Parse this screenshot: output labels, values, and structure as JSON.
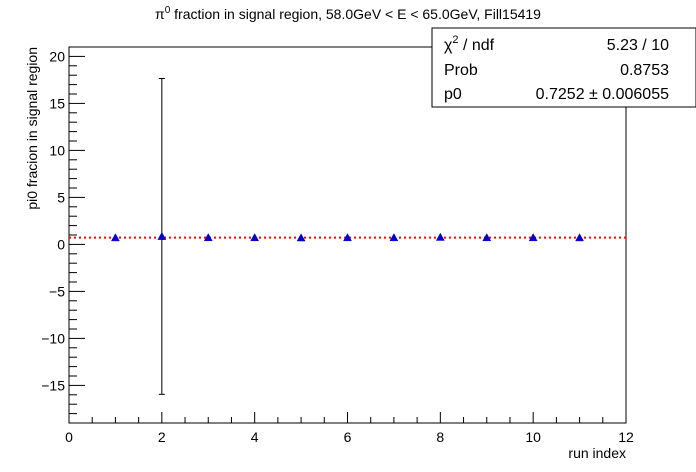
{
  "chart_data": {
    "type": "scatter",
    "title": "π⁰ fraction in signal region, 58.0GeV < E < 65.0GeV, Fill15419",
    "title_parts": {
      "pi": "π",
      "sup": "0",
      "rest": " fraction in signal region, 58.0GeV < E < 65.0GeV, Fill15419"
    },
    "xlabel": "run index",
    "ylabel": "pi0 fracion in signal region",
    "xlim": [
      0,
      12
    ],
    "ylim": [
      -19,
      21
    ],
    "x_ticks": [
      0,
      2,
      4,
      6,
      8,
      10,
      12
    ],
    "y_ticks": [
      -15,
      -10,
      -5,
      0,
      5,
      10,
      15,
      20
    ],
    "x_tick_labels": [
      "0",
      "2",
      "4",
      "6",
      "8",
      "10",
      "12"
    ],
    "y_tick_labels": [
      "−15",
      "−10",
      "−5",
      "0",
      "5",
      "10",
      "15",
      "20"
    ],
    "grid": false,
    "series": [
      {
        "marker": "triangle",
        "color": "#0000cc",
        "x": [
          1,
          2,
          3,
          4,
          5,
          6,
          7,
          8,
          9,
          10,
          11
        ],
        "y": [
          0.71,
          0.85,
          0.72,
          0.72,
          0.7,
          0.72,
          0.72,
          0.76,
          0.72,
          0.72,
          0.71
        ],
        "yerr": [
          0.0,
          16.8,
          0.0,
          0.0,
          0.0,
          0.0,
          0.0,
          0.0,
          0.0,
          0.0,
          0.0
        ]
      }
    ],
    "fit": {
      "value": 0.7252,
      "color": "#ff0000",
      "style": "dotted"
    },
    "stats_box": {
      "rows": [
        {
          "label": "χ² / ndf",
          "label_base": "χ",
          "label_sup": "2",
          "label_rest": " / ndf",
          "value": "5.23 / 10"
        },
        {
          "label": "Prob",
          "value": "0.8753"
        },
        {
          "label": "p0",
          "value": "0.7252 ± 0.006055"
        }
      ]
    }
  }
}
